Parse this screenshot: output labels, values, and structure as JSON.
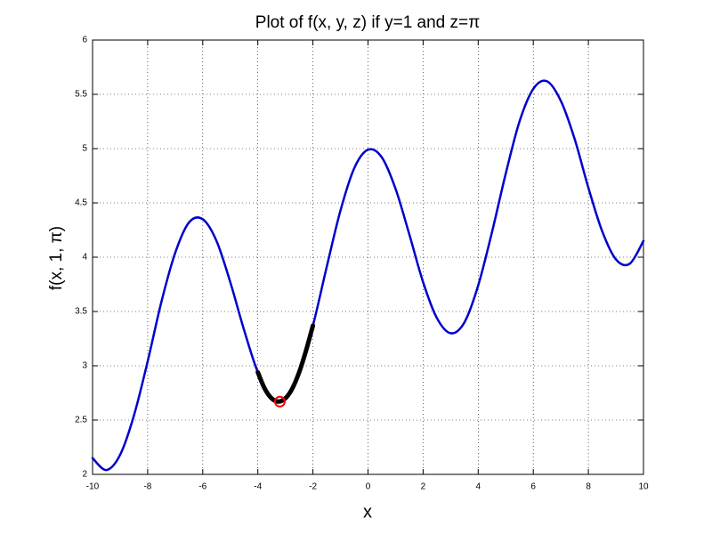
{
  "chart_data": {
    "type": "line",
    "title": "Plot of f(x, y, z) if y=1 and z=π",
    "x_label": "x",
    "y_label": "f(x, 1, π)",
    "xlim": [
      -10,
      10
    ],
    "ylim": [
      2,
      6
    ],
    "xticks": [
      -10,
      -8,
      -6,
      -4,
      -2,
      0,
      2,
      4,
      6,
      8,
      10
    ],
    "yticks": [
      2,
      2.5,
      3,
      3.5,
      4,
      4.5,
      5,
      5.5,
      6
    ],
    "grid": true,
    "series": [
      {
        "color": "#0000cc",
        "mode": "line",
        "x": [
          -10,
          -9.5,
          -9,
          -8.5,
          -8,
          -7.5,
          -7,
          -6.5,
          -6,
          -5.5,
          -5,
          -4.5,
          -4,
          -3.5,
          -3,
          -2.5,
          -2,
          -1.5,
          -1,
          -0.5,
          0,
          0.5,
          1,
          1.5,
          2,
          2.5,
          3,
          3.5,
          4,
          4.5,
          5,
          5.5,
          6,
          6.5,
          7,
          7.5,
          8,
          8.5,
          9,
          9.5,
          10
        ],
        "values": [
          2.15,
          2.04,
          2.18,
          2.54,
          3.04,
          3.59,
          4.04,
          4.32,
          4.35,
          4.15,
          3.77,
          3.33,
          2.94,
          2.7,
          2.7,
          2.94,
          3.37,
          3.91,
          4.43,
          4.82,
          4.99,
          4.92,
          4.63,
          4.21,
          3.77,
          3.44,
          3.3,
          3.4,
          3.74,
          4.23,
          4.77,
          5.25,
          5.55,
          5.62,
          5.44,
          5.09,
          4.64,
          4.24,
          3.98,
          3.94,
          4.15
        ]
      },
      {
        "color": "#000000",
        "mode": "line",
        "x": [
          -4,
          -3.75,
          -3.5,
          -3.25,
          -3,
          -2.75,
          -2.5,
          -2.25,
          -2
        ],
        "values": [
          2.94,
          2.79,
          2.7,
          2.67,
          2.7,
          2.79,
          2.94,
          3.14,
          3.37
        ]
      },
      {
        "color": "#ff0000",
        "mode": "marker",
        "x": [
          -3.2
        ],
        "values": [
          2.67
        ]
      }
    ]
  }
}
